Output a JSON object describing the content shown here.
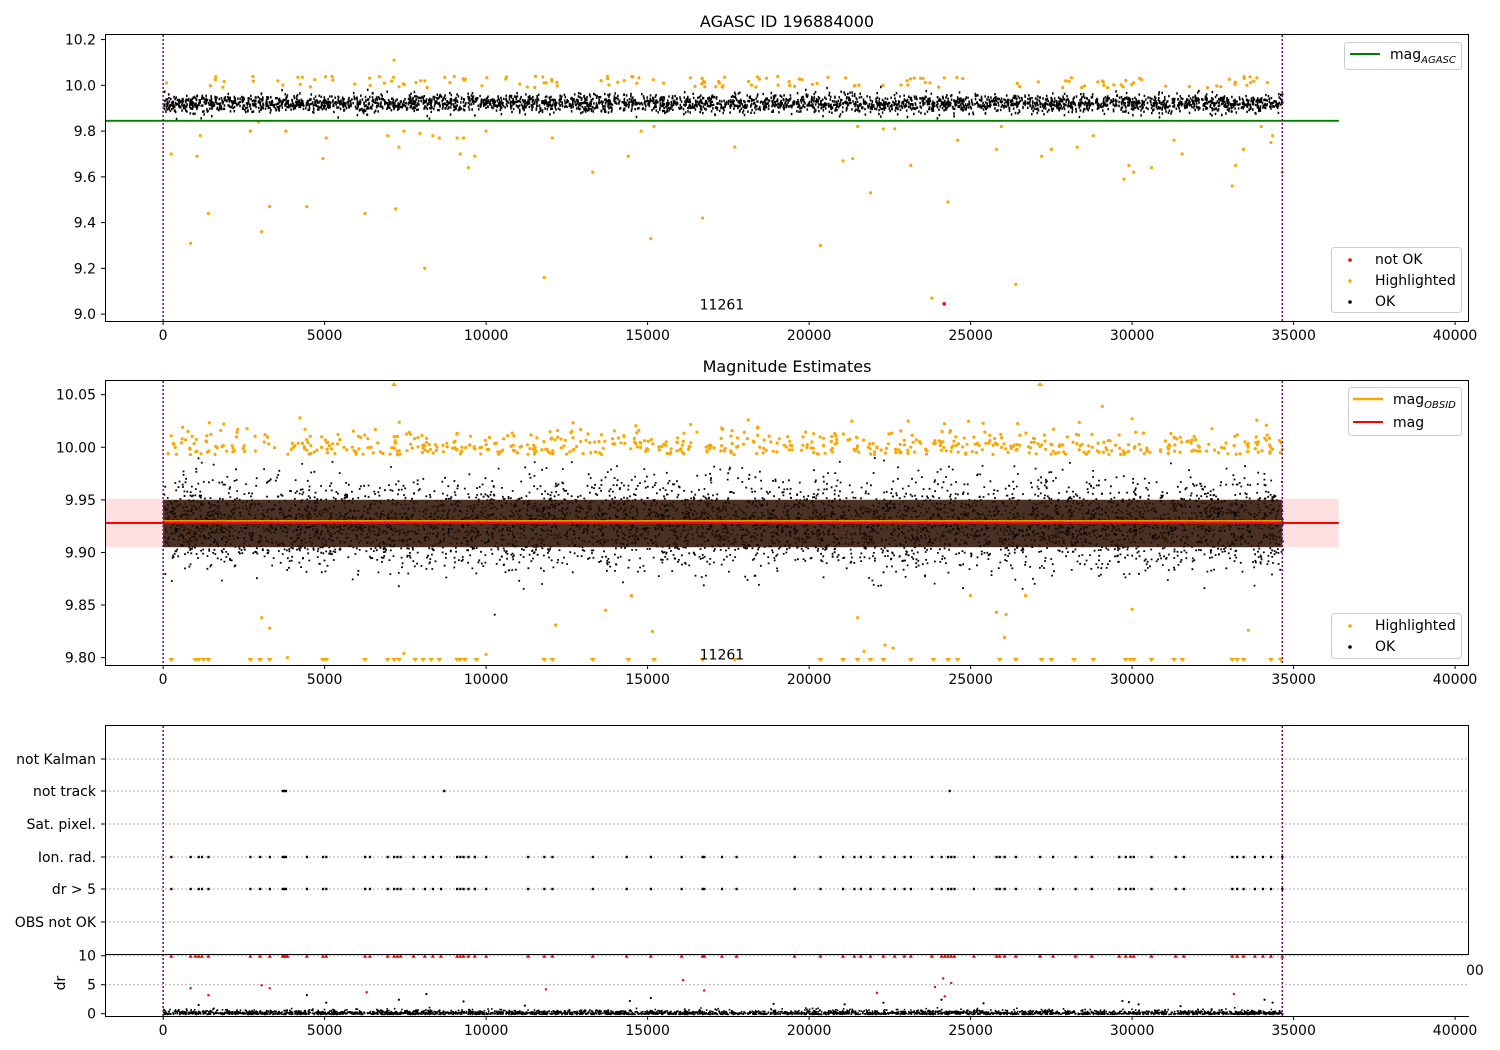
{
  "figure": {
    "window_title": "AGASC ID 196884000"
  },
  "chart_data": [
    {
      "id": "panel1",
      "type": "scatter",
      "title": "AGASC ID 196884000",
      "xlim": [
        -1800,
        40400
      ],
      "ylim": [
        8.97,
        10.22
      ],
      "x_ticks": [
        0,
        5000,
        10000,
        15000,
        20000,
        25000,
        30000,
        35000,
        40000
      ],
      "y_ticks": [
        9.0,
        9.2,
        9.4,
        9.6,
        9.8,
        10.0,
        10.2
      ],
      "y_tick_labels": [
        "9.0",
        "9.2",
        "9.4",
        "9.6",
        "9.8",
        "10.0",
        "10.2"
      ],
      "obsid_label": {
        "text": "11261",
        "x": 17300,
        "y": 9.03
      },
      "vlines": [
        0,
        34650
      ],
      "reference_line": {
        "name": "mag_AGASC",
        "y": 9.845,
        "x_range": [
          -1800,
          36400
        ],
        "color": "#008000"
      },
      "ok_band": {
        "center": 9.925,
        "spread": 0.035,
        "x_range": [
          0,
          34650
        ]
      },
      "series": [
        {
          "name": "not OK",
          "color": "#ff0000",
          "points": [
            [
              24180,
              9.045
            ]
          ]
        },
        {
          "name": "Highlighted",
          "color": "#ffa500",
          "points": [
            [
              250,
              9.7
            ],
            [
              850,
              9.31
            ],
            [
              1050,
              9.69
            ],
            [
              1150,
              9.78
            ],
            [
              1400,
              9.44
            ],
            [
              2700,
              9.8
            ],
            [
              2950,
              9.84
            ],
            [
              3050,
              9.36
            ],
            [
              3300,
              9.47
            ],
            [
              3800,
              9.8
            ],
            [
              4450,
              9.47
            ],
            [
              4950,
              9.68
            ],
            [
              5050,
              9.77
            ],
            [
              6250,
              9.44
            ],
            [
              6950,
              9.78
            ],
            [
              7150,
              10.11
            ],
            [
              7200,
              9.46
            ],
            [
              7300,
              9.73
            ],
            [
              7450,
              9.8
            ],
            [
              7950,
              9.79
            ],
            [
              8100,
              9.2
            ],
            [
              8350,
              9.78
            ],
            [
              8550,
              9.77
            ],
            [
              9100,
              9.77
            ],
            [
              9200,
              9.7
            ],
            [
              9300,
              9.77
            ],
            [
              9450,
              9.64
            ],
            [
              9650,
              9.69
            ],
            [
              10000,
              9.8
            ],
            [
              11800,
              9.16
            ],
            [
              12050,
              9.77
            ],
            [
              13300,
              9.62
            ],
            [
              14400,
              9.69
            ],
            [
              14800,
              9.8
            ],
            [
              15100,
              9.33
            ],
            [
              15200,
              9.82
            ],
            [
              16700,
              9.42
            ],
            [
              17700,
              9.73
            ],
            [
              20350,
              9.3
            ],
            [
              21050,
              9.67
            ],
            [
              21350,
              9.68
            ],
            [
              21500,
              9.82
            ],
            [
              21900,
              9.53
            ],
            [
              22300,
              9.81
            ],
            [
              22650,
              9.81
            ],
            [
              23150,
              9.65
            ],
            [
              23800,
              9.07
            ],
            [
              24300,
              9.49
            ],
            [
              24600,
              9.76
            ],
            [
              25800,
              9.72
            ],
            [
              25950,
              9.82
            ],
            [
              26400,
              9.13
            ],
            [
              27200,
              9.69
            ],
            [
              27500,
              9.72
            ],
            [
              28300,
              9.73
            ],
            [
              28800,
              9.78
            ],
            [
              29750,
              9.59
            ],
            [
              29900,
              9.65
            ],
            [
              30050,
              9.62
            ],
            [
              30600,
              9.64
            ],
            [
              31300,
              9.76
            ],
            [
              31550,
              9.7
            ],
            [
              33100,
              9.56
            ],
            [
              33200,
              9.65
            ],
            [
              33450,
              9.72
            ],
            [
              34000,
              9.82
            ],
            [
              34300,
              9.75
            ],
            [
              34350,
              9.78
            ],
            [
              34650,
              9.62
            ]
          ]
        },
        {
          "name": "OK",
          "color": "#000000",
          "points": []
        }
      ],
      "legend_top": [
        {
          "label_main": "mag",
          "label_sub": "AGASC",
          "color": "#008000"
        }
      ],
      "legend_bottom": [
        {
          "label": "not OK",
          "color": "#ff0000"
        },
        {
          "label": "Highlighted",
          "color": "#ffa500"
        },
        {
          "label": "OK",
          "color": "#000000"
        }
      ]
    },
    {
      "id": "panel2",
      "type": "scatter",
      "title": "Magnitude Estimates",
      "xlim": [
        -1800,
        40400
      ],
      "ylim": [
        9.793,
        10.063
      ],
      "x_ticks": [
        0,
        5000,
        10000,
        15000,
        20000,
        25000,
        30000,
        35000,
        40000
      ],
      "y_ticks": [
        9.8,
        9.85,
        9.9,
        9.95,
        10.0,
        10.05
      ],
      "y_tick_labels": [
        "9.80",
        "9.85",
        "9.90",
        "9.95",
        "10.00",
        "10.05"
      ],
      "obsid_label": {
        "text": "11261",
        "x": 17300,
        "y": 9.8
      },
      "vlines": [
        0,
        34650
      ],
      "mag_line": {
        "name": "mag",
        "y": 9.928,
        "x_range": [
          -1800,
          36400
        ],
        "color": "#ff0000"
      },
      "mag_band": {
        "y_range": [
          9.905,
          9.951
        ],
        "x_range": [
          -1800,
          36400
        ],
        "color": "#ffd6d6"
      },
      "mag_obsid_line": {
        "name": "mag_OBSID",
        "y": 9.93,
        "x_range": [
          0,
          34650
        ],
        "color": "#ffa500"
      },
      "ok_band": {
        "center": 9.928,
        "spread": 0.028,
        "x_range": [
          0,
          34650
        ]
      },
      "highlighted_low_points": [
        [
          3050,
          9.838
        ],
        [
          3300,
          9.828
        ],
        [
          3850,
          9.8
        ],
        [
          7450,
          9.804
        ],
        [
          10000,
          9.803
        ],
        [
          12150,
          9.831
        ],
        [
          13700,
          9.845
        ],
        [
          14500,
          9.859
        ],
        [
          15150,
          9.825
        ],
        [
          21500,
          9.838
        ],
        [
          21700,
          9.806
        ],
        [
          22350,
          9.812
        ],
        [
          22600,
          9.809
        ],
        [
          25000,
          9.859
        ],
        [
          25800,
          9.843
        ],
        [
          26050,
          9.819
        ],
        [
          26100,
          9.841
        ],
        [
          26700,
          9.859
        ],
        [
          30000,
          9.846
        ],
        [
          33600,
          9.826
        ]
      ],
      "arrows_bottom": [
        250,
        1000,
        1100,
        1250,
        1400,
        2700,
        3000,
        3300,
        4950,
        5050,
        6250,
        6950,
        7150,
        7300,
        7800,
        8050,
        8300,
        8550,
        9100,
        9200,
        9350,
        9700,
        11800,
        12050,
        13300,
        14400,
        15200,
        16700,
        17700,
        20350,
        21050,
        21500,
        21900,
        22300,
        23150,
        23850,
        24300,
        24600,
        25900,
        26400,
        27200,
        27500,
        28200,
        28800,
        29800,
        29950,
        30050,
        30600,
        31300,
        31550,
        33100,
        33250,
        33450,
        34300,
        34600
      ],
      "arrows_top": [
        7150,
        27150
      ],
      "legend_top": [
        {
          "label_main": "mag",
          "label_sub": "OBSID",
          "color": "#ffa500"
        },
        {
          "label_main": "mag",
          "label_sub": "",
          "color": "#ff0000"
        }
      ],
      "legend_bottom": [
        {
          "label": "Highlighted",
          "color": "#ffa500"
        },
        {
          "label": "OK",
          "color": "#000000"
        }
      ]
    },
    {
      "id": "panel3",
      "type": "scatter",
      "title": "",
      "xlim": [
        -1800,
        40400
      ],
      "categories": [
        "not Kalman",
        "not track",
        "Sat. pixel.",
        "Ion. rad.",
        "dr > 5",
        "OBS not OK"
      ],
      "vlines": [
        0,
        34650
      ],
      "not_track_x": [
        3700,
        3750,
        3800,
        8700,
        24350
      ],
      "flag_x": [
        250,
        850,
        1100,
        1200,
        1400,
        2700,
        3000,
        3300,
        3700,
        3750,
        3800,
        4450,
        4950,
        5050,
        6250,
        6400,
        6950,
        7150,
        7250,
        7350,
        7750,
        8100,
        8350,
        8600,
        9100,
        9200,
        9300,
        9450,
        9650,
        10000,
        11300,
        11800,
        12050,
        13300,
        14350,
        15100,
        16050,
        16700,
        16750,
        17300,
        17750,
        19550,
        20350,
        21050,
        21400,
        21600,
        21900,
        22300,
        22650,
        22950,
        23150,
        23800,
        24100,
        24300,
        24400,
        24500,
        25100,
        25800,
        25900,
        26050,
        26400,
        27150,
        27550,
        28250,
        28750,
        29600,
        29800,
        29950,
        30050,
        30600,
        31350,
        31600,
        33100,
        33250,
        33450,
        33800,
        34050,
        34300,
        34650
      ]
    },
    {
      "id": "panel4",
      "type": "scatter",
      "title": "",
      "ylabel": "dr",
      "xlim": [
        -1800,
        40400
      ],
      "ylim": [
        -0.4,
        10.3
      ],
      "x_ticks": [
        0,
        5000,
        10000,
        15000,
        20000,
        25000,
        30000,
        35000,
        40000
      ],
      "y_ticks": [
        0,
        5,
        10
      ],
      "y_tick_labels": [
        "0",
        "5",
        "10"
      ],
      "vlines": [
        0,
        34650
      ],
      "clipped_x": [
        250,
        850,
        1000,
        1100,
        1200,
        1400,
        2700,
        3000,
        3300,
        3700,
        3750,
        3800,
        3850,
        4450,
        4950,
        5050,
        6250,
        6400,
        6950,
        7150,
        7250,
        7350,
        7750,
        8100,
        8350,
        8600,
        9100,
        9200,
        9300,
        9450,
        9650,
        10000,
        11300,
        11800,
        12050,
        13300,
        14350,
        15100,
        16050,
        16700,
        16750,
        17300,
        17750,
        19550,
        20350,
        21050,
        21400,
        21600,
        21900,
        22300,
        22650,
        22950,
        23150,
        23800,
        24100,
        24200,
        24300,
        24400,
        24500,
        25100,
        25800,
        25900,
        26050,
        26400,
        27150,
        27550,
        28250,
        28750,
        29600,
        29800,
        29950,
        30050,
        30600,
        31350,
        31600,
        33100,
        33250,
        33450,
        33800,
        34050,
        34300,
        34650
      ],
      "red_points": [
        [
          850,
          4.4
        ],
        [
          1400,
          3.2
        ],
        [
          3050,
          4.9
        ],
        [
          3300,
          4.4
        ],
        [
          6300,
          3.7
        ],
        [
          11850,
          4.2
        ],
        [
          16100,
          5.8
        ],
        [
          16750,
          4.0
        ],
        [
          24150,
          6.1
        ],
        [
          24400,
          5.3
        ],
        [
          23900,
          4.6
        ],
        [
          24200,
          3.0
        ],
        [
          22100,
          3.6
        ],
        [
          33150,
          3.4
        ]
      ],
      "medium_points": [
        [
          1100,
          1.5
        ],
        [
          7300,
          2.4
        ],
        [
          9300,
          2.1
        ],
        [
          14450,
          2.2
        ],
        [
          15100,
          2.7
        ],
        [
          18900,
          1.7
        ],
        [
          21100,
          1.6
        ],
        [
          22300,
          1.9
        ],
        [
          24100,
          2.4
        ],
        [
          29700,
          2.2
        ],
        [
          29900,
          2.0
        ],
        [
          30200,
          1.6
        ],
        [
          34100,
          2.4
        ],
        [
          34350,
          1.9
        ],
        [
          4450,
          3.2
        ],
        [
          5050,
          1.9
        ],
        [
          8150,
          3.4
        ],
        [
          11200,
          1.4
        ],
        [
          25400,
          1.8
        ],
        [
          31500,
          1.3
        ]
      ],
      "stray_tick_label": "00"
    }
  ]
}
